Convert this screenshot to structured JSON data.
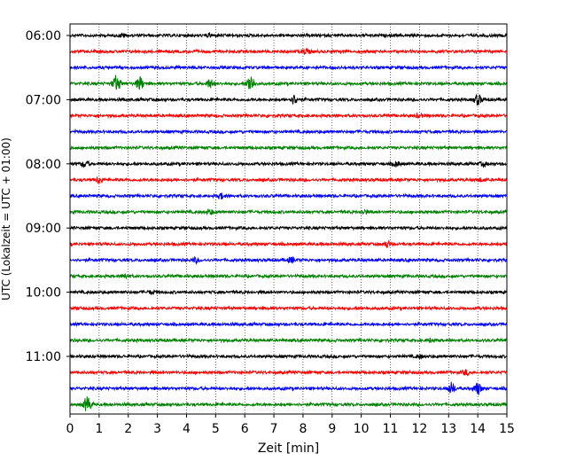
{
  "chart_data": {
    "type": "line",
    "title": "",
    "xlabel": "Zeit  [min]",
    "ylabel": "UTC (Lokalzeit = UTC + 01:00)",
    "xlim": [
      0,
      15
    ],
    "x_ticks": [
      "0",
      "1",
      "2",
      "3",
      "4",
      "5",
      "6",
      "7",
      "8",
      "9",
      "10",
      "11",
      "12",
      "13",
      "14",
      "15"
    ],
    "y_ticks": [
      "06:00",
      "07:00",
      "08:00",
      "09:00",
      "10:00",
      "11:00"
    ],
    "grid": "vertical dotted",
    "trace_interval_min": 15,
    "trace_colors": [
      "#000000",
      "#ff0000",
      "#0000ff",
      "#008000"
    ],
    "traces": [
      {
        "start": "06:00",
        "events": [
          [
            1.8,
            0.3
          ],
          [
            4.8,
            0.25
          ]
        ]
      },
      {
        "start": "06:15",
        "events": [
          [
            8.1,
            0.5
          ]
        ]
      },
      {
        "start": "06:30",
        "events": []
      },
      {
        "start": "06:45",
        "events": [
          [
            1.6,
            1.6
          ],
          [
            2.4,
            1.3
          ],
          [
            4.8,
            0.8
          ],
          [
            6.2,
            1.8
          ]
        ]
      },
      {
        "start": "07:00",
        "events": [
          [
            7.7,
            0.9
          ],
          [
            14.0,
            1.0
          ]
        ]
      },
      {
        "start": "07:15",
        "events": [
          [
            12.0,
            0.35
          ]
        ]
      },
      {
        "start": "07:30",
        "events": []
      },
      {
        "start": "07:45",
        "events": []
      },
      {
        "start": "08:00",
        "events": [
          [
            0.5,
            0.6
          ],
          [
            11.2,
            0.5
          ],
          [
            14.2,
            0.35
          ]
        ]
      },
      {
        "start": "08:15",
        "events": [
          [
            1.0,
            0.6
          ],
          [
            14.1,
            0.3
          ]
        ]
      },
      {
        "start": "08:30",
        "events": [
          [
            5.2,
            0.5
          ]
        ]
      },
      {
        "start": "08:45",
        "events": [
          [
            4.8,
            0.5
          ],
          [
            10.1,
            0.4
          ]
        ]
      },
      {
        "start": "09:00",
        "events": []
      },
      {
        "start": "09:15",
        "events": [
          [
            10.9,
            0.6
          ]
        ]
      },
      {
        "start": "09:30",
        "events": [
          [
            4.3,
            0.45
          ],
          [
            7.6,
            0.5
          ]
        ]
      },
      {
        "start": "09:45",
        "events": [
          [
            1.9,
            0.5
          ]
        ]
      },
      {
        "start": "10:00",
        "events": [
          [
            2.8,
            0.3
          ]
        ]
      },
      {
        "start": "10:15",
        "events": []
      },
      {
        "start": "10:30",
        "events": []
      },
      {
        "start": "10:45",
        "events": [
          [
            12.4,
            0.3
          ]
        ]
      },
      {
        "start": "11:00",
        "events": [
          [
            12.0,
            0.3
          ]
        ]
      },
      {
        "start": "11:15",
        "events": [
          [
            13.6,
            0.45
          ]
        ]
      },
      {
        "start": "11:30",
        "events": [
          [
            13.1,
            1.1
          ],
          [
            14.0,
            1.2
          ]
        ]
      },
      {
        "start": "11:45",
        "events": [
          [
            0.6,
            1.6
          ]
        ]
      }
    ]
  }
}
